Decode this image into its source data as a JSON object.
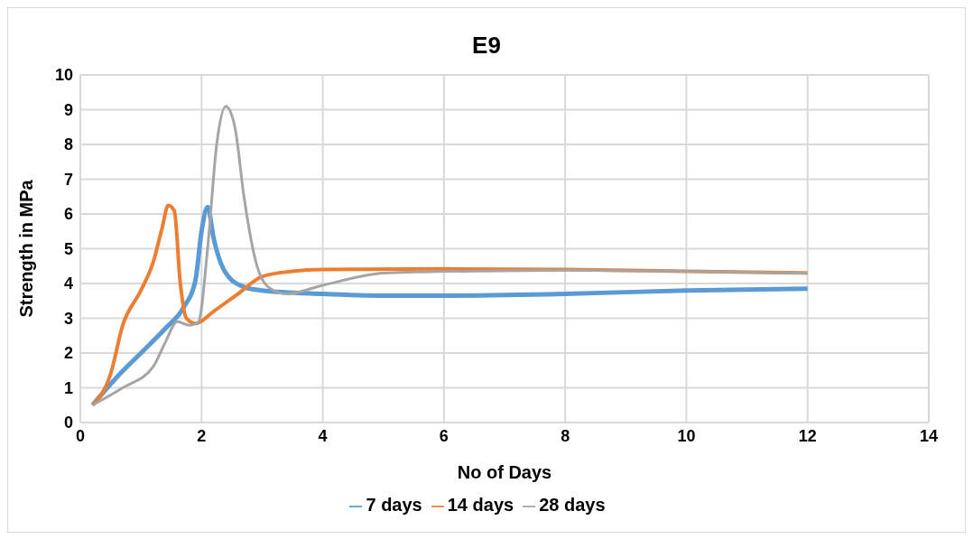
{
  "chart_data": {
    "type": "line",
    "title": "E9",
    "xlabel": "No of Days",
    "ylabel": "Strength in MPa",
    "xlim": [
      0,
      14
    ],
    "xticks": [
      0,
      2,
      4,
      6,
      8,
      10,
      12,
      14
    ],
    "ylim": [
      0,
      10
    ],
    "yticks": [
      0,
      1,
      2,
      3,
      4,
      5,
      6,
      7,
      8,
      9,
      10
    ],
    "grid": true,
    "legend": "bottom",
    "marker": "none",
    "line_style": "solid",
    "series": [
      {
        "name": "7 days",
        "color": "#5b9bd5",
        "x": [
          0.2,
          0.6,
          1.0,
          1.4,
          1.7,
          1.9,
          2.0,
          2.1,
          2.2,
          2.4,
          2.7,
          3.0,
          4.0,
          5.0,
          6.0,
          8.0,
          10.0,
          12.0
        ],
        "values": [
          0.5,
          1.3,
          2.0,
          2.7,
          3.3,
          4.1,
          5.5,
          6.2,
          5.3,
          4.3,
          3.9,
          3.8,
          3.7,
          3.65,
          3.65,
          3.7,
          3.8,
          3.85
        ]
      },
      {
        "name": "14 days",
        "color": "#ed7d31",
        "x": [
          0.2,
          0.5,
          0.7,
          1.0,
          1.2,
          1.35,
          1.45,
          1.55,
          1.65,
          1.75,
          1.9,
          2.2,
          2.6,
          3.0,
          3.5,
          4.0,
          6.0,
          8.0,
          10.0,
          12.0
        ],
        "values": [
          0.5,
          1.4,
          2.8,
          3.8,
          4.6,
          5.6,
          6.25,
          6.1,
          4.0,
          3.0,
          2.85,
          3.2,
          3.7,
          4.2,
          4.35,
          4.4,
          4.42,
          4.4,
          4.35,
          4.3
        ]
      },
      {
        "name": "28 days",
        "color": "#a5a5a5",
        "x": [
          0.2,
          0.7,
          1.2,
          1.4,
          1.6,
          1.8,
          1.95,
          2.1,
          2.25,
          2.4,
          2.55,
          2.7,
          2.9,
          3.1,
          3.4,
          4.0,
          5.0,
          6.0,
          8.0,
          10.0,
          12.0
        ],
        "values": [
          0.5,
          1.0,
          1.6,
          2.3,
          2.9,
          2.8,
          2.9,
          5.0,
          8.0,
          9.1,
          8.5,
          6.5,
          4.6,
          3.9,
          3.7,
          3.95,
          4.3,
          4.35,
          4.38,
          4.35,
          4.3
        ]
      }
    ]
  }
}
